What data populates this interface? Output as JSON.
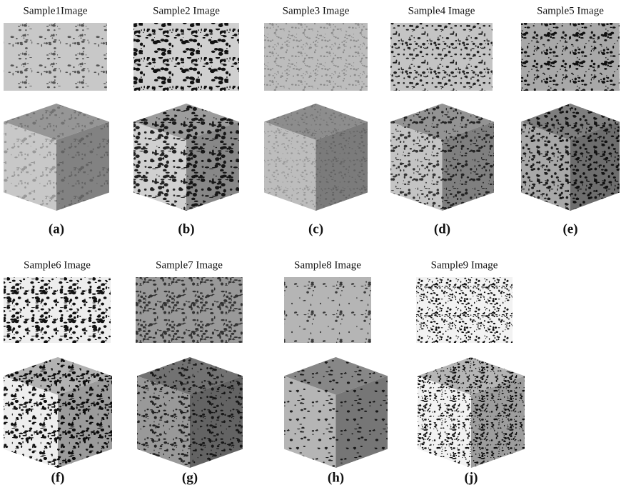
{
  "panels": [
    {
      "title": "Sample1Image",
      "label": "(a)"
    },
    {
      "title": "Sample2 Image",
      "label": "(b)"
    },
    {
      "title": "Sample3 Image",
      "label": "(c)"
    },
    {
      "title": "Sample4 Image",
      "label": "(d)"
    },
    {
      "title": "Sample5 Image",
      "label": "(e)"
    },
    {
      "title": "Sample6 Image",
      "label": "(f)"
    },
    {
      "title": "Sample7 Image",
      "label": "(g)"
    },
    {
      "title": "Sample8 Image",
      "label": "(h)"
    },
    {
      "title": "Sample9 Image",
      "label": "(j)"
    }
  ]
}
